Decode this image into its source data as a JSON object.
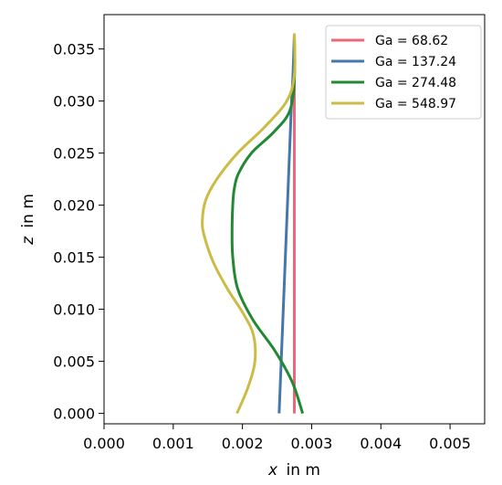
{
  "chart_data": {
    "type": "line",
    "xlabel_var": "x",
    "xlabel_unit": "in m",
    "ylabel_var": "z",
    "ylabel_unit": "in m",
    "xlim": [
      0.0,
      0.0055
    ],
    "ylim": [
      -0.001,
      0.0383
    ],
    "xticks": [
      "0.000",
      "0.001",
      "0.002",
      "0.003",
      "0.004",
      "0.005"
    ],
    "yticks": [
      "0.000",
      "0.005",
      "0.010",
      "0.015",
      "0.020",
      "0.025",
      "0.030",
      "0.035"
    ],
    "grid": false,
    "legend_position": "top-right",
    "series": [
      {
        "name": "Ga = 68.62",
        "color": "#EE6677",
        "x": [
          0.00275,
          0.00275,
          0.00275,
          0.00275,
          0.00275,
          0.00275,
          0.00275,
          0.00275,
          0.00275
        ],
        "y": [
          0.0,
          0.005,
          0.01,
          0.015,
          0.02,
          0.025,
          0.03,
          0.0325,
          0.0365
        ]
      },
      {
        "name": "Ga = 137.24",
        "color": "#4477AA",
        "x": [
          0.00253,
          0.00256,
          0.00259,
          0.00262,
          0.00265,
          0.00268,
          0.00271,
          0.00273,
          0.00275
        ],
        "y": [
          0.0,
          0.005,
          0.01,
          0.015,
          0.02,
          0.025,
          0.03,
          0.0325,
          0.0365
        ]
      },
      {
        "name": "Ga = 274.48",
        "color": "#228833",
        "x": [
          0.00287,
          0.00272,
          0.00247,
          0.00215,
          0.00193,
          0.00186,
          0.00185,
          0.00186,
          0.00188,
          0.00194,
          0.00213,
          0.00245,
          0.00268,
          0.00275,
          0.00275
        ],
        "y": [
          0.0,
          0.003,
          0.006,
          0.009,
          0.012,
          0.015,
          0.0175,
          0.02,
          0.0215,
          0.023,
          0.025,
          0.027,
          0.029,
          0.032,
          0.0365
        ]
      },
      {
        "name": "Ga = 548.97",
        "color": "#CCBB44",
        "x": [
          0.00192,
          0.00208,
          0.00218,
          0.00216,
          0.00202,
          0.00178,
          0.00158,
          0.00145,
          0.00142,
          0.00147,
          0.00163,
          0.00193,
          0.00232,
          0.00264,
          0.00275,
          0.00275
        ],
        "y": [
          0.0,
          0.0025,
          0.005,
          0.0075,
          0.0095,
          0.012,
          0.0145,
          0.017,
          0.0185,
          0.0205,
          0.0225,
          0.025,
          0.0275,
          0.03,
          0.0325,
          0.0365
        ]
      }
    ]
  }
}
